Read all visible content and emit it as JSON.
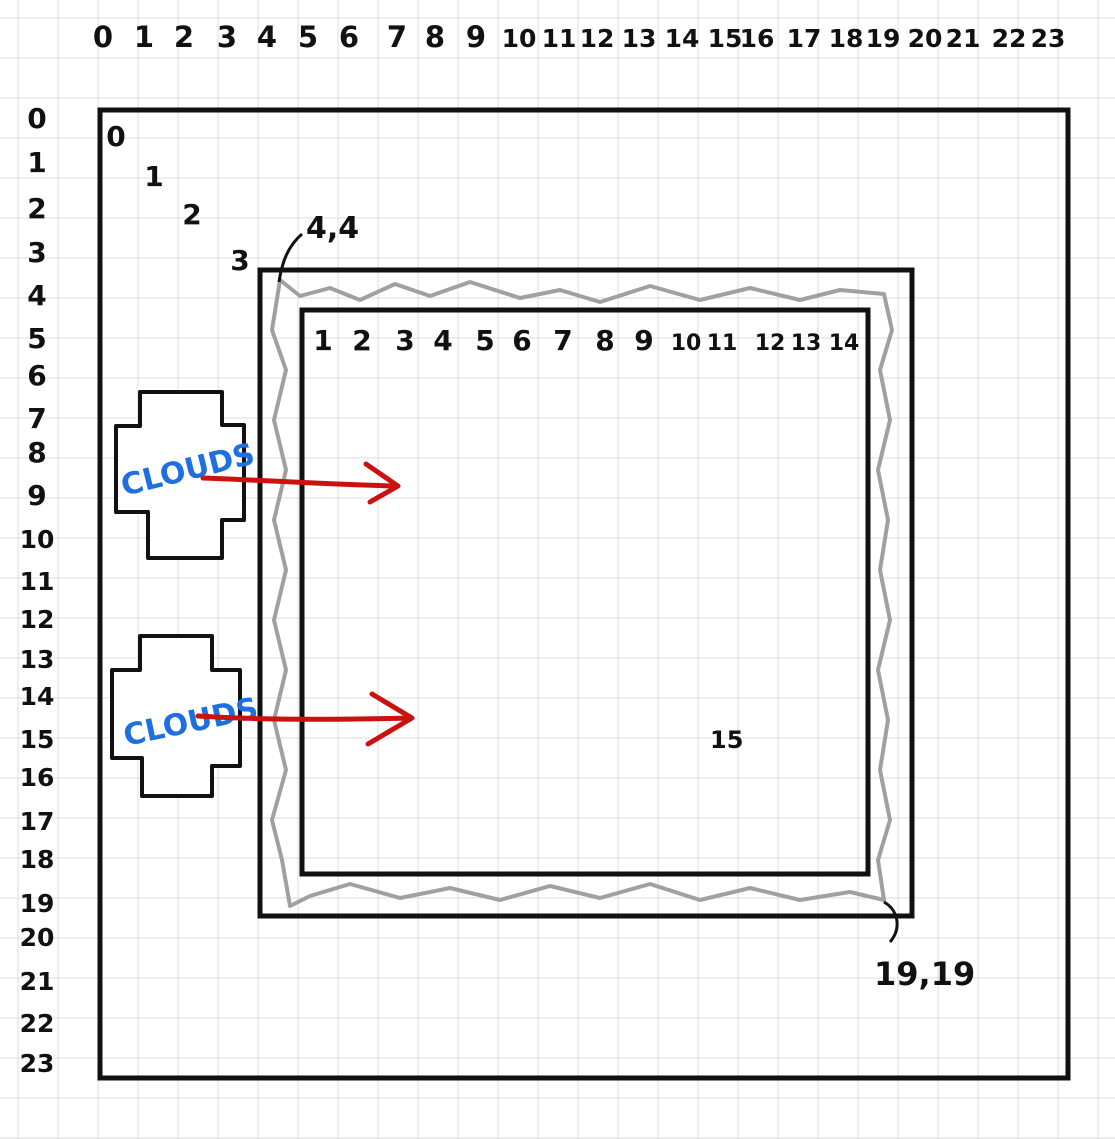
{
  "colors": {
    "grid": "#dcdcdc",
    "ink": "#111111",
    "wall": "#a0a0a0",
    "cloud_text": "#1e6fe0",
    "arrow": "#cc1111",
    "background": "#ffffff"
  },
  "top_axis": [
    "0",
    "1",
    "2",
    "3",
    "4",
    "5",
    "6",
    "7",
    "8",
    "9",
    "10",
    "11",
    "12",
    "13",
    "14",
    "15",
    "16",
    "17",
    "18",
    "19",
    "20",
    "21",
    "22",
    "23"
  ],
  "left_axis": [
    "0",
    "1",
    "2",
    "3",
    "4",
    "5",
    "6",
    "7",
    "8",
    "9",
    "10",
    "11",
    "12",
    "13",
    "14",
    "15",
    "16",
    "17",
    "18",
    "19",
    "20",
    "21",
    "22",
    "23"
  ],
  "outer_diagonal": [
    "0",
    "1",
    "2",
    "3"
  ],
  "corner_labels": {
    "top_left": "4,4",
    "bottom_right": "19,19"
  },
  "inner_axis": [
    "1",
    "2",
    "3",
    "4",
    "5",
    "6",
    "7",
    "8",
    "9",
    "10",
    "11",
    "12",
    "13",
    "14"
  ],
  "inner_extra_label": "15",
  "clouds": [
    {
      "label": "CLOUDS",
      "direction": "right"
    },
    {
      "label": "CLOUDS",
      "direction": "right"
    }
  ]
}
